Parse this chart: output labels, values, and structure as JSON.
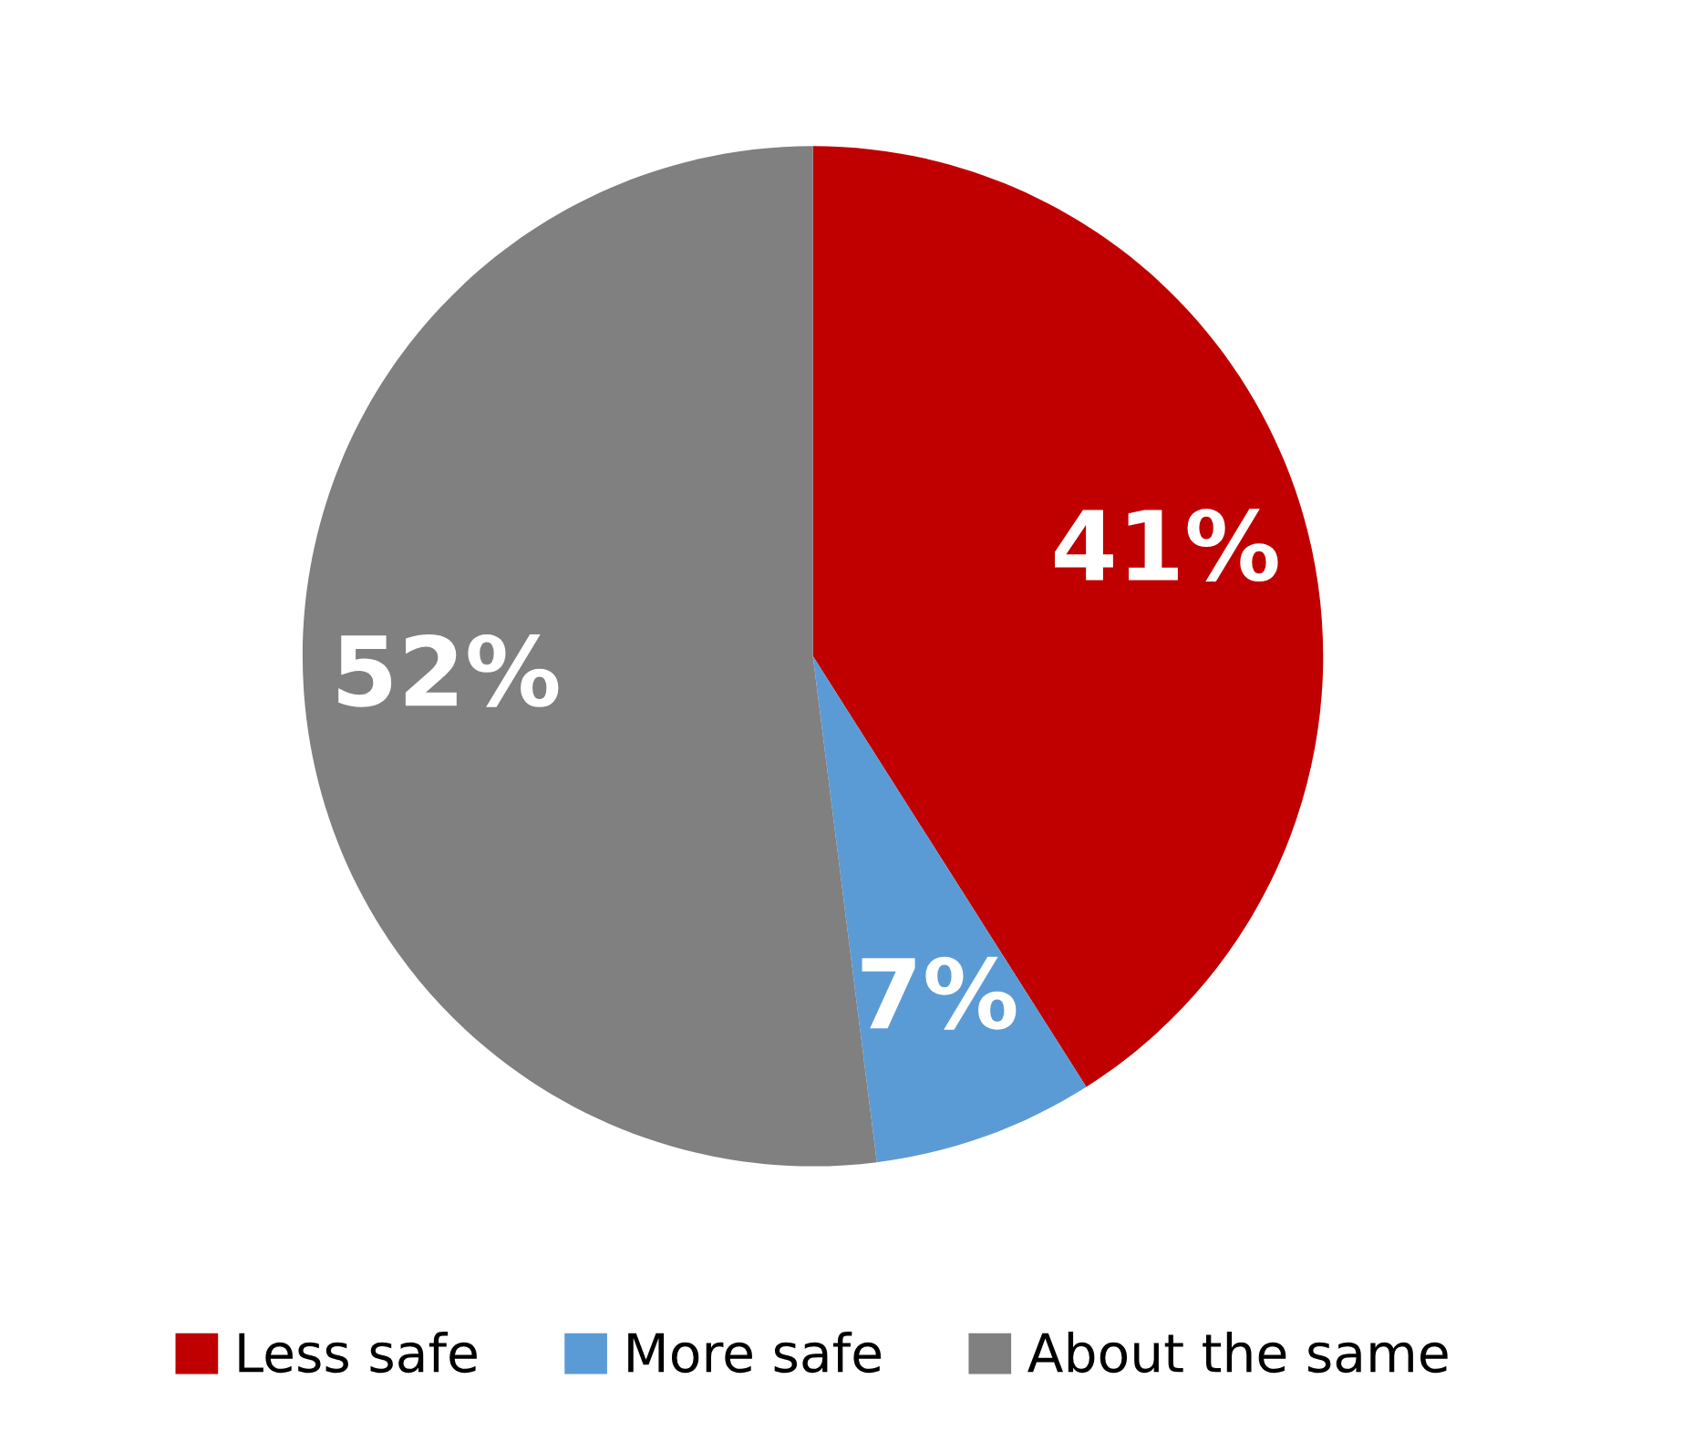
{
  "chart_data": {
    "type": "pie",
    "categories": [
      "Less safe",
      "More safe",
      "About the same"
    ],
    "values": [
      41,
      7,
      52
    ],
    "colors": [
      "#c00000",
      "#5b9bd5",
      "#808080"
    ],
    "value_labels": [
      "41%",
      "7%",
      "52%"
    ],
    "legend": "bottom"
  }
}
